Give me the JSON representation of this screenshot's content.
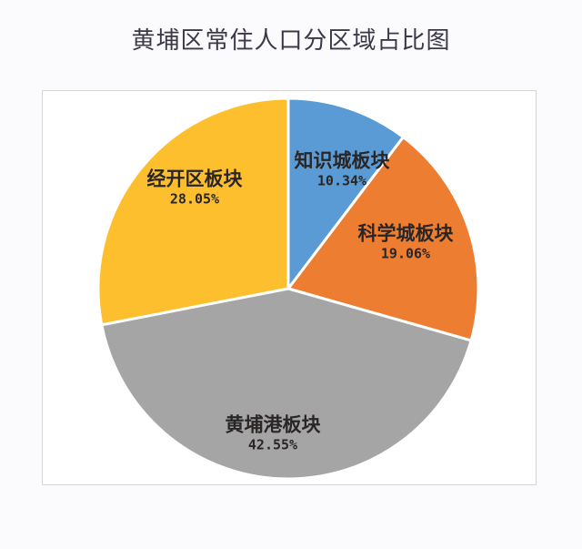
{
  "title": "黄埔区常住人口分区域占比图",
  "chart_data": {
    "type": "pie",
    "title": "黄埔区常住人口分区域占比图",
    "categories": [
      "知识城板块",
      "科学城板块",
      "黄埔港板块",
      "经开区板块"
    ],
    "values": [
      10.34,
      19.06,
      42.55,
      28.05
    ],
    "unit": "%",
    "colors": [
      "#5b9bd5",
      "#ed7d31",
      "#a5a5a5",
      "#fdbf2d"
    ],
    "start_angle": "12 o'clock",
    "direction": "clockwise",
    "legend": "none",
    "data_labels": "inside, category name + percentage"
  },
  "labels": [
    {
      "name": "知识城板块",
      "pct": "10.34%"
    },
    {
      "name": "科学城板块",
      "pct": "19.06%"
    },
    {
      "name": "黄埔港板块",
      "pct": "42.55%"
    },
    {
      "name": "经开区板块",
      "pct": "28.05%"
    }
  ],
  "colors": {
    "title": "#3d3848",
    "frame_border": "#d7d5dc",
    "background": "#fbfbfd",
    "slice_border": "#ffffff"
  }
}
